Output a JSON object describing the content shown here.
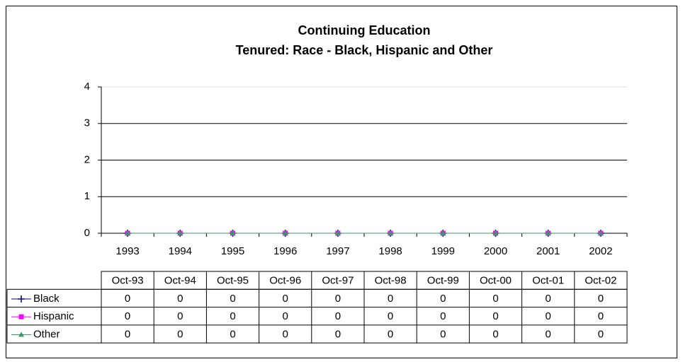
{
  "chart_data": {
    "type": "line",
    "title": "Continuing Education",
    "subtitle": "Tenured: Race - Black, Hispanic and Other",
    "categories": [
      "1993",
      "1994",
      "1995",
      "1996",
      "1997",
      "1998",
      "1999",
      "2000",
      "2001",
      "2002"
    ],
    "table_header": [
      "Oct-93",
      "Oct-94",
      "Oct-95",
      "Oct-96",
      "Oct-97",
      "Oct-98",
      "Oct-99",
      "Oct-00",
      "Oct-01",
      "Oct-02"
    ],
    "series": [
      {
        "name": "Black",
        "color": "#000080",
        "marker": "plus",
        "values": [
          0,
          0,
          0,
          0,
          0,
          0,
          0,
          0,
          0,
          0
        ]
      },
      {
        "name": "Hispanic",
        "color": "#ff00ff",
        "marker": "square",
        "values": [
          0,
          0,
          0,
          0,
          0,
          0,
          0,
          0,
          0,
          0
        ]
      },
      {
        "name": "Other",
        "color": "#339966",
        "marker": "triangle",
        "values": [
          0,
          0,
          0,
          0,
          0,
          0,
          0,
          0,
          0,
          0
        ]
      }
    ],
    "ylim": [
      0,
      4
    ],
    "yticks": [
      0,
      1,
      2,
      3,
      4
    ],
    "grid": true
  }
}
